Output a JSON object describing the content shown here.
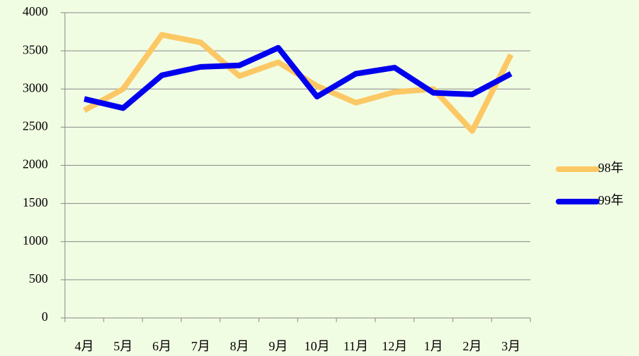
{
  "chart_data": {
    "type": "line",
    "categories": [
      "4月",
      "5月",
      "6月",
      "7月",
      "8月",
      "9月",
      "10月",
      "11月",
      "12月",
      "1月",
      "2月",
      "3月"
    ],
    "series": [
      {
        "name": "98年",
        "color": "#fcc865",
        "values": [
          2720,
          3000,
          3710,
          3610,
          3170,
          3350,
          3040,
          2820,
          2960,
          3000,
          2450,
          3450
        ]
      },
      {
        "name": "99年",
        "color": "#0000ee",
        "values": [
          2870,
          2750,
          3180,
          3290,
          3310,
          3540,
          2900,
          3200,
          3280,
          2950,
          2930,
          3200
        ]
      }
    ],
    "ylim": [
      0,
      4000
    ],
    "yticks": [
      0,
      500,
      1000,
      1500,
      2000,
      2500,
      3000,
      3500,
      4000
    ],
    "grid": true,
    "legend": "right"
  }
}
